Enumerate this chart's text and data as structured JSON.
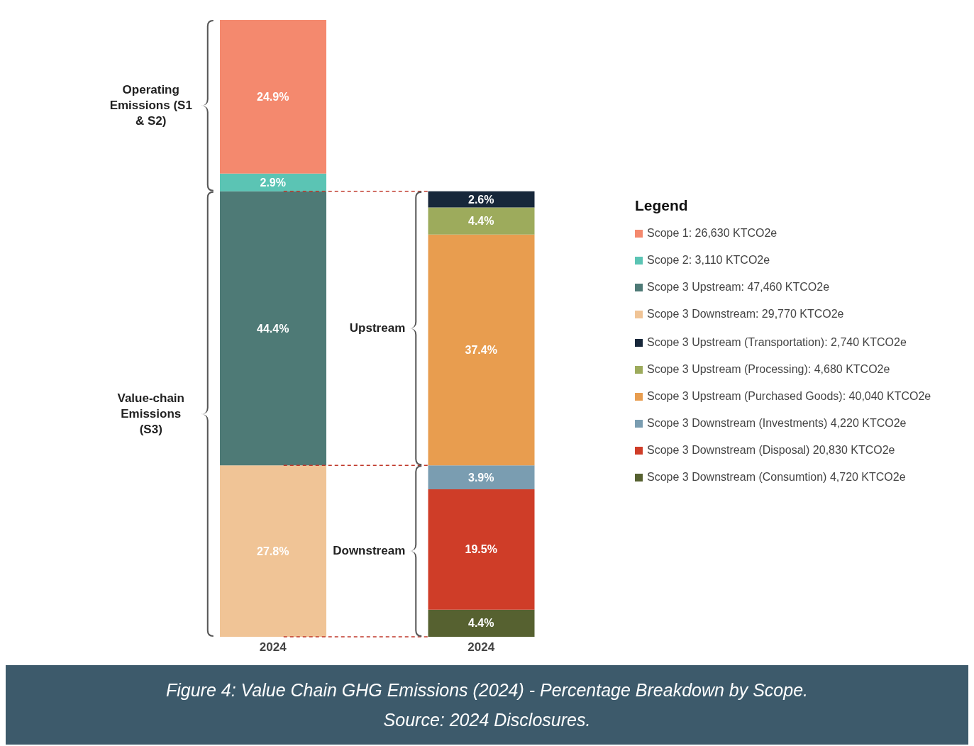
{
  "chart_data": {
    "type": "bar",
    "stacked": true,
    "categories": [
      "2024",
      "2024"
    ],
    "tick_labels": "x",
    "legend": "right",
    "legend_title": "Legend",
    "annotations": [
      "Operating Emissions (S1 & S2)",
      "Value-chain Emissions (S3)",
      "Upstream",
      "Downstream",
      "Figure 4: Value Chain GHG Emissions (2024) - Percentage Breakdown by Scope.",
      "Source: 2024 Disclosures."
    ],
    "series": [
      {
        "name": "Scope 3 Downstream: 29,770 KTCO2e",
        "color": "#f0c496",
        "values": [
          27.8,
          null
        ],
        "value_labels": [
          "27.8%",
          null
        ]
      },
      {
        "name": "Scope 3 Upstream: 47,460 KTCO2e",
        "color": "#4e7a76",
        "values": [
          44.4,
          null
        ],
        "value_labels": [
          "44.4%",
          null
        ]
      },
      {
        "name": "Scope 2: 3,110 KTCO2e",
        "color": "#5bc4b4",
        "values": [
          2.9,
          null
        ],
        "value_labels": [
          "2.9%",
          null
        ]
      },
      {
        "name": "Scope 1: 26,630 KTCO2e",
        "color": "#f4896e",
        "values": [
          24.9,
          null
        ],
        "value_labels": [
          "24.9%",
          null
        ]
      },
      {
        "name": "Scope 3 Downstream (Consumtion) 4,720 KTCO2e",
        "color": "#566130",
        "values": [
          null,
          4.4
        ],
        "value_labels": [
          null,
          "4.4%"
        ]
      },
      {
        "name": "Scope 3 Downstream (Disposal) 20,830 KTCO2e",
        "color": "#cf3d28",
        "values": [
          null,
          19.5
        ],
        "value_labels": [
          null,
          "19.5%"
        ]
      },
      {
        "name": "Scope 3 Downstream (Investments) 4,220 KTCO2e",
        "color": "#7a9db1",
        "values": [
          null,
          3.9
        ],
        "value_labels": [
          null,
          "3.9%"
        ]
      },
      {
        "name": "Scope 3 Upstream (Purchased Goods): 40,040 KTCO2e",
        "color": "#e89d4f",
        "values": [
          null,
          37.4
        ],
        "value_labels": [
          null,
          "37.4%"
        ]
      },
      {
        "name": "Scope 3 Upstream (Processing): 4,680 KTCO2e",
        "color": "#9dab5c",
        "values": [
          null,
          4.4
        ],
        "value_labels": [
          null,
          "4.4%"
        ]
      },
      {
        "name": "Scope 3 Upstream (Transportation): 2,740 KTCO2e",
        "color": "#17273a",
        "values": [
          null,
          2.6
        ],
        "value_labels": [
          null,
          "2.6%"
        ]
      }
    ]
  }
}
